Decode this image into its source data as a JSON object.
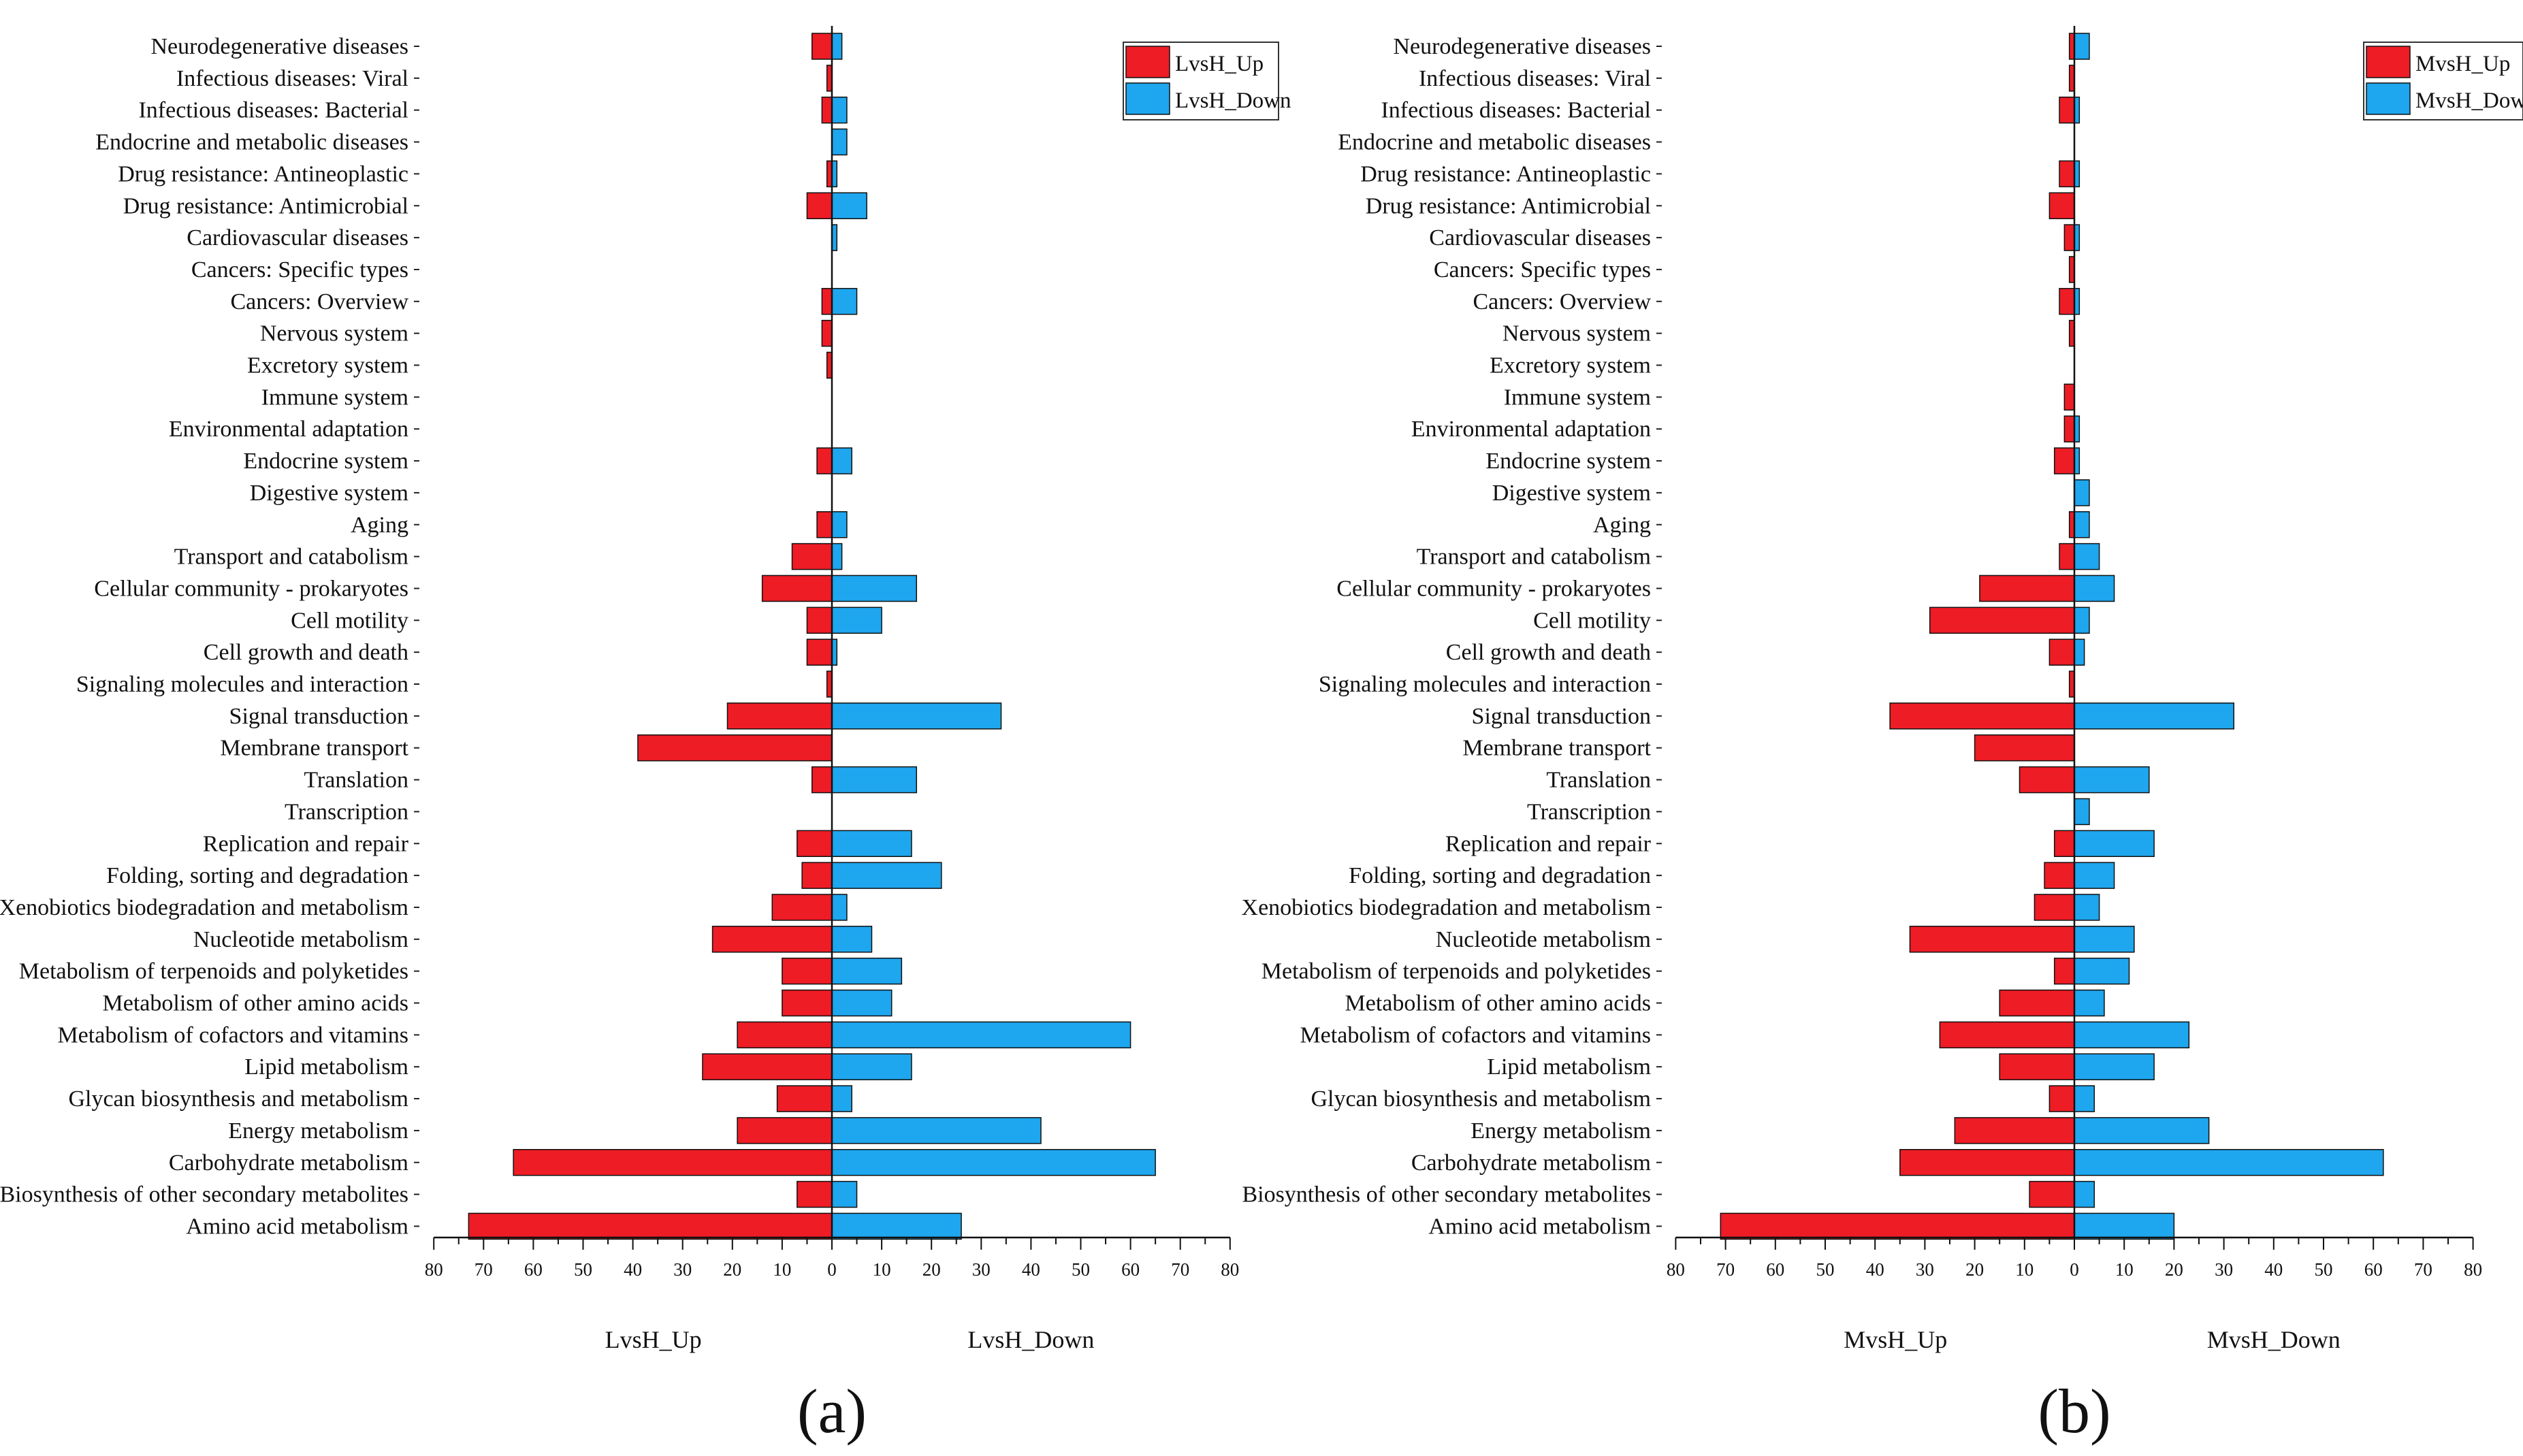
{
  "chart_data": [
    {
      "type": "bar",
      "orientation": "horizontal-diverging",
      "panel_label": "(a)",
      "categories": [
        "Neurodegenerative diseases",
        "Infectious diseases: Viral",
        "Infectious diseases: Bacterial",
        "Endocrine and metabolic diseases",
        "Drug resistance: Antineoplastic",
        "Drug resistance: Antimicrobial",
        "Cardiovascular diseases",
        "Cancers: Specific types",
        "Cancers: Overview",
        "Nervous system",
        "Excretory system",
        "Immune system",
        "Environmental adaptation",
        "Endocrine system",
        "Digestive system",
        "Aging",
        "Transport and catabolism",
        "Cellular community - prokaryotes",
        "Cell motility",
        "Cell growth and death",
        "Signaling molecules and interaction",
        "Signal transduction",
        "Membrane transport",
        "Translation",
        "Transcription",
        "Replication and repair",
        "Folding, sorting and degradation",
        "Xenobiotics biodegradation and metabolism",
        "Nucleotide metabolism",
        "Metabolism of terpenoids and polyketides",
        "Metabolism of other amino acids",
        "Metabolism of cofactors and vitamins",
        "Lipid metabolism",
        "Glycan biosynthesis and metabolism",
        "Energy metabolism",
        "Carbohydrate metabolism",
        "Biosynthesis of other secondary metabolites",
        "Amino acid metabolism"
      ],
      "series": [
        {
          "name": "LvsH_Up",
          "color": "#ee1c25",
          "values": [
            4,
            1,
            2,
            0,
            1,
            5,
            0,
            0,
            2,
            2,
            1,
            0,
            0,
            3,
            0,
            3,
            8,
            14,
            5,
            5,
            1,
            21,
            39,
            4,
            0,
            7,
            6,
            12,
            24,
            10,
            10,
            19,
            26,
            11,
            19,
            64,
            7,
            73
          ]
        },
        {
          "name": "LvsH_Down",
          "color": "#1ea6ee",
          "values": [
            2,
            0,
            3,
            3,
            1,
            7,
            1,
            0,
            5,
            0,
            0,
            0,
            0,
            4,
            0,
            3,
            2,
            17,
            10,
            1,
            0,
            34,
            0,
            17,
            0,
            16,
            22,
            3,
            8,
            14,
            12,
            60,
            16,
            4,
            42,
            65,
            5,
            26
          ]
        }
      ],
      "xlim": [
        -80,
        80
      ],
      "xticks": [
        80,
        70,
        60,
        50,
        40,
        30,
        20,
        10,
        0,
        10,
        20,
        30,
        40,
        50,
        60,
        70,
        80
      ],
      "xlabel_left": "LvsH_Up",
      "xlabel_right": "LvsH_Down",
      "legend": [
        "LvsH_Up",
        "LvsH_Down"
      ],
      "legend_position": "top-right"
    },
    {
      "type": "bar",
      "orientation": "horizontal-diverging",
      "panel_label": "(b)",
      "categories": [
        "Neurodegenerative diseases",
        "Infectious diseases: Viral",
        "Infectious diseases: Bacterial",
        "Endocrine and metabolic diseases",
        "Drug resistance: Antineoplastic",
        "Drug resistance: Antimicrobial",
        "Cardiovascular diseases",
        "Cancers: Specific types",
        "Cancers: Overview",
        "Nervous system",
        "Excretory system",
        "Immune system",
        "Environmental adaptation",
        "Endocrine system",
        "Digestive system",
        "Aging",
        "Transport and catabolism",
        "Cellular community - prokaryotes",
        "Cell motility",
        "Cell growth and death",
        "Signaling molecules and interaction",
        "Signal transduction",
        "Membrane transport",
        "Translation",
        "Transcription",
        "Replication and repair",
        "Folding, sorting and degradation",
        "Xenobiotics biodegradation and metabolism",
        "Nucleotide metabolism",
        "Metabolism of terpenoids and polyketides",
        "Metabolism of other amino acids",
        "Metabolism of cofactors and vitamins",
        "Lipid metabolism",
        "Glycan biosynthesis and metabolism",
        "Energy metabolism",
        "Carbohydrate metabolism",
        "Biosynthesis of other secondary metabolites",
        "Amino acid metabolism"
      ],
      "series": [
        {
          "name": "MvsH_Up",
          "color": "#ee1c25",
          "values": [
            1,
            1,
            3,
            0,
            3,
            5,
            2,
            1,
            3,
            1,
            0,
            2,
            2,
            4,
            0,
            1,
            3,
            19,
            29,
            5,
            1,
            37,
            20,
            11,
            0,
            4,
            6,
            8,
            33,
            4,
            15,
            27,
            15,
            5,
            24,
            35,
            9,
            71
          ]
        },
        {
          "name": "MvsH_Down",
          "color": "#1ea6ee",
          "values": [
            3,
            0,
            1,
            0,
            1,
            0,
            1,
            0,
            1,
            0,
            0,
            0,
            1,
            1,
            3,
            3,
            5,
            8,
            3,
            2,
            0,
            32,
            0,
            15,
            3,
            16,
            8,
            5,
            12,
            11,
            6,
            23,
            16,
            4,
            27,
            62,
            4,
            20
          ]
        }
      ],
      "xlim": [
        -80,
        80
      ],
      "xticks": [
        80,
        70,
        60,
        50,
        40,
        30,
        20,
        10,
        0,
        10,
        20,
        30,
        40,
        50,
        60,
        70,
        80
      ],
      "xlabel_left": "MvsH_Up",
      "xlabel_right": "MvsH_Down",
      "legend": [
        "MvsH_Up",
        "MvsH_Down"
      ],
      "legend_position": "top-right"
    }
  ]
}
